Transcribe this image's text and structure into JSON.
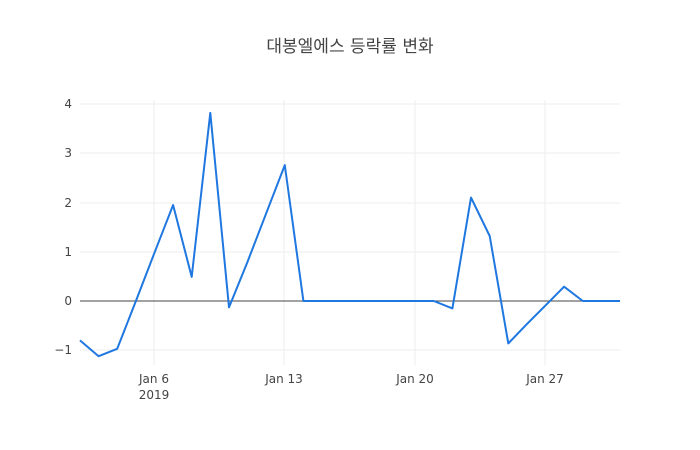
{
  "chart_data": {
    "type": "line",
    "title": "대봉엘에스 등락률 변화",
    "xlabel": "",
    "ylabel": "",
    "x": [
      "2019-01-02",
      "2019-01-03",
      "2019-01-04",
      "2019-01-05",
      "2019-01-06",
      "2019-01-07",
      "2019-01-08",
      "2019-01-09",
      "2019-01-10",
      "2019-01-11",
      "2019-01-12",
      "2019-01-13",
      "2019-01-14",
      "2019-01-15",
      "2019-01-16",
      "2019-01-17",
      "2019-01-18",
      "2019-01-19",
      "2019-01-20",
      "2019-01-21",
      "2019-01-22",
      "2019-01-23",
      "2019-01-24",
      "2019-01-25",
      "2019-01-26",
      "2019-01-27",
      "2019-01-28",
      "2019-01-29",
      "2019-01-30",
      "2019-01-31"
    ],
    "series": [
      {
        "name": "등락률",
        "color": "#1f77e0",
        "values": [
          -0.8,
          -1.12,
          -0.97,
          0.0,
          0.98,
          1.95,
          0.49,
          3.82,
          -0.13,
          0.8,
          1.78,
          2.76,
          0.0,
          0.0,
          0.0,
          0.0,
          0.0,
          0.0,
          0.0,
          0.0,
          -0.15,
          2.1,
          1.32,
          -0.86,
          -0.47,
          -0.09,
          0.29,
          0.0,
          0.0,
          0.0
        ]
      }
    ],
    "xticks": [
      "Jan 6\n2019",
      "Jan 13",
      "Jan 20",
      "Jan 27"
    ],
    "yticks": [
      "−1",
      "0",
      "1",
      "2",
      "3",
      "4"
    ],
    "ylim": [
      -1.3,
      4.1
    ],
    "grid": true,
    "legend": "none"
  },
  "labels": {
    "title": "대봉엘에스 등락률 변화",
    "xtick_0": "Jan 6",
    "xtick_0_year": "2019",
    "xtick_1": "Jan 13",
    "xtick_2": "Jan 20",
    "xtick_3": "Jan 27",
    "ytick_m1": "−1",
    "ytick_0": "0",
    "ytick_1": "1",
    "ytick_2": "2",
    "ytick_3": "3",
    "ytick_4": "4"
  }
}
